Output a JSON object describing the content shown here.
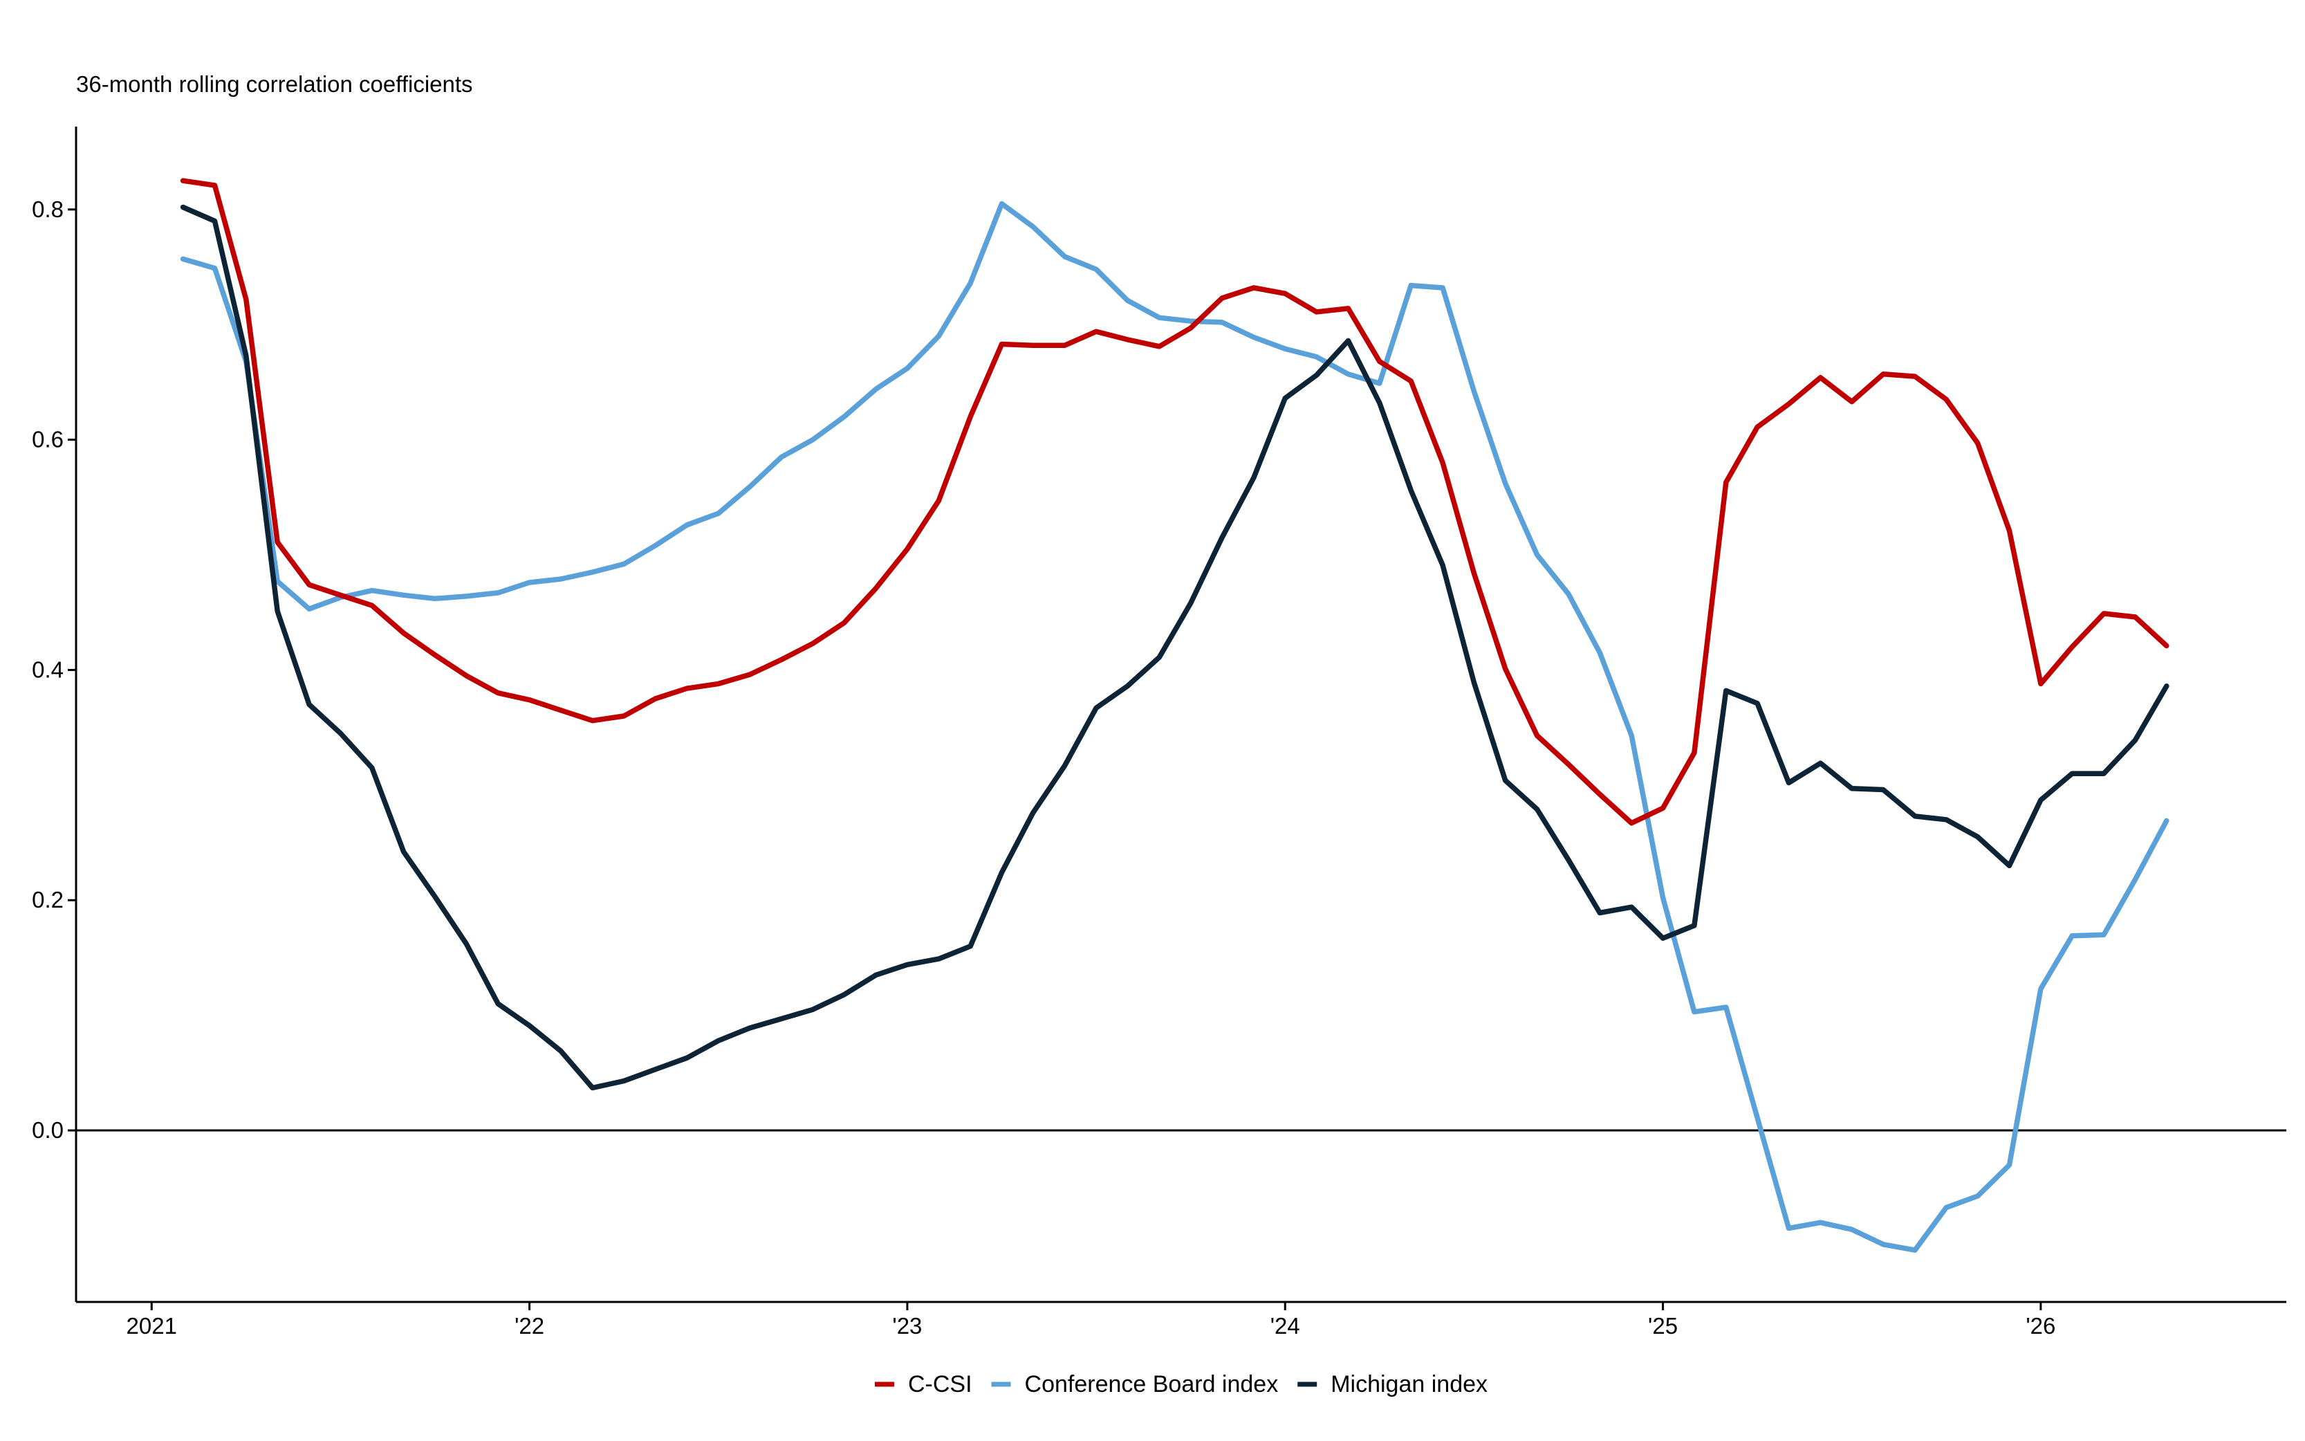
{
  "chart_data": {
    "type": "line",
    "title": "",
    "subtitle": "36-month rolling correlation coefficients",
    "xlabel": "",
    "ylabel": "",
    "x_axis": {
      "tick_labels": [
        "2021",
        "'22",
        "'23",
        "'24",
        "'25",
        "'26"
      ],
      "tick_values": [
        2021.0,
        2022.0,
        2023.0,
        2024.0,
        2025.0,
        2026.0
      ],
      "range": [
        2020.8,
        2026.65
      ]
    },
    "y_axis": {
      "tick_labels": [
        "0.8",
        "0.6",
        "0.4",
        "0.2",
        "0.0"
      ],
      "tick_values": [
        0.8,
        0.6,
        0.4,
        0.2,
        0.0
      ],
      "range": [
        -0.149,
        0.872
      ]
    },
    "zero_line": true,
    "grid": false,
    "legend_position": "bottom-center",
    "x": [
      2021.083,
      2021.167,
      2021.25,
      2021.333,
      2021.417,
      2021.5,
      2021.583,
      2021.667,
      2021.75,
      2021.833,
      2021.917,
      2022.0,
      2022.083,
      2022.167,
      2022.25,
      2022.333,
      2022.417,
      2022.5,
      2022.583,
      2022.667,
      2022.75,
      2022.833,
      2022.917,
      2023.0,
      2023.083,
      2023.167,
      2023.25,
      2023.333,
      2023.417,
      2023.5,
      2023.583,
      2023.667,
      2023.75,
      2023.833,
      2023.917,
      2024.0,
      2024.083,
      2024.167,
      2024.25,
      2024.333,
      2024.417,
      2024.5,
      2024.583,
      2024.667,
      2024.75,
      2024.833,
      2024.917,
      2025.0,
      2025.083,
      2025.167,
      2025.25,
      2025.333,
      2025.417,
      2025.5,
      2025.583,
      2025.667,
      2025.75,
      2025.833,
      2025.917,
      2026.0,
      2026.083,
      2026.167,
      2026.25,
      2026.333
    ],
    "series": [
      {
        "name": "C-CSI",
        "color": "#c00000",
        "values": [
          0.825,
          0.821,
          0.722,
          0.511,
          0.474,
          0.465,
          0.456,
          0.432,
          0.413,
          0.395,
          0.38,
          0.374,
          0.365,
          0.356,
          0.36,
          0.375,
          0.384,
          0.388,
          0.396,
          0.409,
          0.423,
          0.441,
          0.471,
          0.505,
          0.547,
          0.62,
          0.683,
          0.682,
          0.682,
          0.694,
          0.687,
          0.681,
          0.697,
          0.723,
          0.732,
          0.727,
          0.711,
          0.714,
          0.668,
          0.651,
          0.58,
          0.484,
          0.401,
          0.343,
          0.318,
          0.292,
          0.267,
          0.28,
          0.328,
          0.563,
          0.611,
          0.631,
          0.654,
          0.633,
          0.657,
          0.655,
          0.635,
          0.597,
          0.521,
          0.388,
          0.42,
          0.449,
          0.446,
          0.421
        ]
      },
      {
        "name": "Conference Board index",
        "color": "#5aa0d9",
        "values": [
          0.757,
          0.749,
          0.668,
          0.477,
          0.453,
          0.463,
          0.469,
          0.465,
          0.462,
          0.464,
          0.467,
          0.476,
          0.479,
          0.485,
          0.492,
          0.508,
          0.526,
          0.536,
          0.559,
          0.585,
          0.6,
          0.62,
          0.644,
          0.662,
          0.69,
          0.736,
          0.805,
          0.785,
          0.759,
          0.748,
          0.721,
          0.706,
          0.703,
          0.702,
          0.689,
          0.679,
          0.672,
          0.657,
          0.649,
          0.734,
          0.732,
          0.642,
          0.562,
          0.5,
          0.466,
          0.415,
          0.343,
          0.202,
          0.103,
          0.107,
          0.011,
          -0.085,
          -0.08,
          -0.086,
          -0.099,
          -0.104,
          -0.067,
          -0.057,
          -0.03,
          0.123,
          0.169,
          0.17,
          0.218,
          0.269
        ]
      },
      {
        "name": "Michigan index",
        "color": "#0d2436",
        "values": [
          0.802,
          0.79,
          0.673,
          0.451,
          0.37,
          0.345,
          0.315,
          0.242,
          0.203,
          0.162,
          0.11,
          0.091,
          0.069,
          0.037,
          0.043,
          0.053,
          0.063,
          0.078,
          0.089,
          0.097,
          0.105,
          0.118,
          0.135,
          0.144,
          0.149,
          0.16,
          0.224,
          0.276,
          0.317,
          0.367,
          0.386,
          0.411,
          0.458,
          0.515,
          0.567,
          0.636,
          0.656,
          0.686,
          0.632,
          0.556,
          0.491,
          0.389,
          0.304,
          0.279,
          0.235,
          0.189,
          0.194,
          0.167,
          0.178,
          0.382,
          0.371,
          0.302,
          0.319,
          0.297,
          0.296,
          0.273,
          0.27,
          0.255,
          0.23,
          0.287,
          0.31,
          0.31,
          0.339,
          0.386
        ]
      }
    ]
  }
}
